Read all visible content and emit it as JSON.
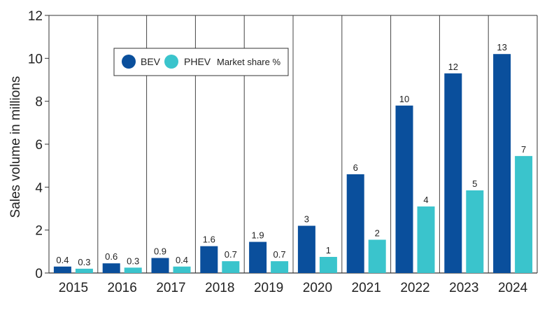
{
  "chart_data": {
    "type": "bar",
    "title": "",
    "xlabel": "",
    "ylabel": "Sales volume in millions",
    "ylim": [
      0,
      12
    ],
    "yticks": [
      0,
      2,
      4,
      6,
      8,
      10,
      12
    ],
    "categories": [
      "2015",
      "2016",
      "2017",
      "2018",
      "2019",
      "2020",
      "2021",
      "2022",
      "2023",
      "2024"
    ],
    "series": [
      {
        "name": "BEV",
        "color": "#0a4f9c",
        "values": [
          0.3,
          0.45,
          0.7,
          1.25,
          1.45,
          2.2,
          4.6,
          7.8,
          9.3,
          10.2
        ],
        "labels": [
          "0.4",
          "0.6",
          "0.9",
          "1.6",
          "1.9",
          "3",
          "6",
          "10",
          "12",
          "13"
        ]
      },
      {
        "name": "PHEV",
        "color": "#3ac4cc",
        "values": [
          0.2,
          0.25,
          0.3,
          0.55,
          0.55,
          0.75,
          1.55,
          3.1,
          3.85,
          5.45
        ],
        "labels": [
          "0.3",
          "0.3",
          "0.4",
          "0.7",
          "0.7",
          "1",
          "2",
          "4",
          "5",
          "7"
        ]
      }
    ],
    "legend": {
      "position": "top-left",
      "entries": [
        "BEV",
        "PHEV"
      ],
      "note": "Market share %"
    }
  }
}
